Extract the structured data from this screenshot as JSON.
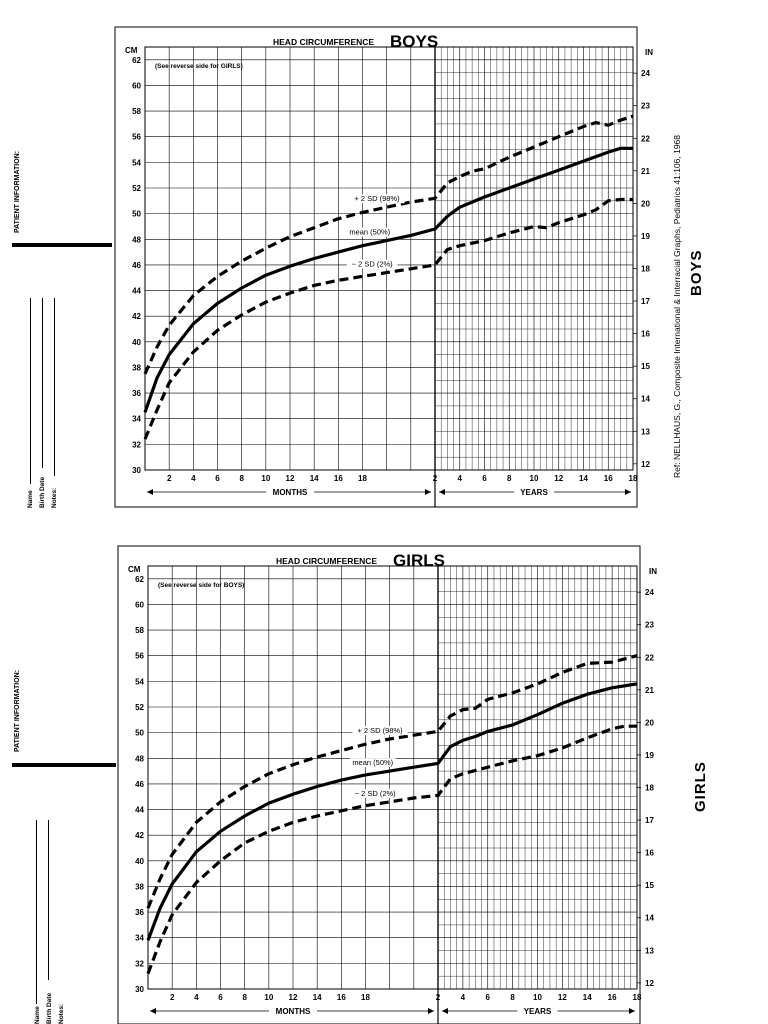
{
  "boys_panel": {
    "patient_information_label": "PATIENT INFORMATION:",
    "name_label": "Name",
    "birth_date_label": "Birth Date",
    "notes_label": "Notes:",
    "reference": "Ref: NELLHAUS, G., Composite International & Interracial Graphs, Pediatrics 41:106, 1968",
    "side_label": "BOYS"
  },
  "girls_panel": {
    "patient_information_label": "PATIENT INFORMATION:",
    "name_label": "Name",
    "birth_date_label": "Birth Date",
    "notes_label": "Notes:",
    "side_label": "GIRLS"
  },
  "chart_data": [
    {
      "type": "line",
      "title_prefix": "HEAD CIRCUMFERENCE",
      "title_main": "BOYS",
      "note": "(See reverse side for GIRLS)",
      "ylabel_left": "CM",
      "ylabel_right": "IN",
      "y_ticks_cm": [
        "30",
        "32",
        "34",
        "36",
        "38",
        "40",
        "42",
        "44",
        "46",
        "48",
        "50",
        "52",
        "54",
        "56",
        "58",
        "60",
        "62"
      ],
      "y_ticks_in": [
        "12",
        "13",
        "14",
        "15",
        "16",
        "17",
        "18",
        "19",
        "20",
        "21",
        "22",
        "23",
        "24"
      ],
      "x_ticks_months": [
        "2",
        "4",
        "6",
        "8",
        "10",
        "12",
        "14",
        "16",
        "18"
      ],
      "x_ticks_years": [
        "2",
        "4",
        "6",
        "8",
        "10",
        "12",
        "14",
        "16",
        "18"
      ],
      "xlabel_months": "MONTHS",
      "xlabel_years": "YEARS",
      "ylim_cm": [
        30,
        63
      ],
      "grid": true,
      "series": [
        {
          "name": "+ 2 SD (98%)",
          "style": "dashed",
          "months": [
            [
              0,
              37.5
            ],
            [
              1,
              39.6
            ],
            [
              2,
              41.3
            ],
            [
              4,
              43.6
            ],
            [
              6,
              45.1
            ],
            [
              8,
              46.3
            ],
            [
              10,
              47.3
            ],
            [
              12,
              48.2
            ],
            [
              14,
              48.9
            ],
            [
              16,
              49.6
            ],
            [
              18,
              50.1
            ],
            [
              20,
              50.5
            ],
            [
              22,
              50.9
            ],
            [
              24,
              51.2
            ]
          ],
          "years": [
            [
              2,
              51.2
            ],
            [
              3,
              52.4
            ],
            [
              4,
              52.9
            ],
            [
              5,
              53.3
            ],
            [
              6,
              53.5
            ],
            [
              8,
              54.4
            ],
            [
              10,
              55.2
            ],
            [
              12,
              56.0
            ],
            [
              14,
              56.8
            ],
            [
              15,
              57.1
            ],
            [
              16,
              56.9
            ],
            [
              17,
              57.3
            ],
            [
              18,
              57.6
            ]
          ]
        },
        {
          "name": "mean (50%)",
          "style": "solid",
          "months": [
            [
              0,
              34.5
            ],
            [
              1,
              37.2
            ],
            [
              2,
              39.0
            ],
            [
              4,
              41.4
            ],
            [
              6,
              43.0
            ],
            [
              8,
              44.2
            ],
            [
              10,
              45.2
            ],
            [
              12,
              45.9
            ],
            [
              14,
              46.5
            ],
            [
              16,
              47.0
            ],
            [
              18,
              47.5
            ],
            [
              20,
              47.9
            ],
            [
              22,
              48.3
            ],
            [
              24,
              48.8
            ]
          ],
          "years": [
            [
              2,
              48.8
            ],
            [
              3,
              49.8
            ],
            [
              4,
              50.5
            ],
            [
              6,
              51.3
            ],
            [
              8,
              52.0
            ],
            [
              10,
              52.7
            ],
            [
              12,
              53.4
            ],
            [
              14,
              54.1
            ],
            [
              16,
              54.8
            ],
            [
              17,
              55.1
            ],
            [
              18,
              55.1
            ]
          ]
        },
        {
          "name": "− 2 SD (2%)",
          "style": "dashed",
          "months": [
            [
              0,
              32.4
            ],
            [
              1,
              34.7
            ],
            [
              2,
              36.8
            ],
            [
              4,
              39.2
            ],
            [
              6,
              40.9
            ],
            [
              8,
              42.1
            ],
            [
              10,
              43.1
            ],
            [
              12,
              43.8
            ],
            [
              14,
              44.4
            ],
            [
              16,
              44.8
            ],
            [
              18,
              45.1
            ],
            [
              20,
              45.4
            ],
            [
              22,
              45.7
            ],
            [
              24,
              46.0
            ]
          ],
          "years": [
            [
              2,
              46.0
            ],
            [
              3,
              47.2
            ],
            [
              4,
              47.5
            ],
            [
              6,
              47.9
            ],
            [
              8,
              48.5
            ],
            [
              10,
              49.0
            ],
            [
              11,
              48.9
            ],
            [
              12,
              49.3
            ],
            [
              14,
              49.9
            ],
            [
              15,
              50.3
            ],
            [
              16,
              51.0
            ],
            [
              17,
              51.1
            ],
            [
              18,
              51.1
            ]
          ]
        }
      ],
      "line_labels": [
        "+ 2 SD (98%)",
        "mean (50%)",
        "− 2 SD (2%)"
      ]
    },
    {
      "type": "line",
      "title_prefix": "HEAD CIRCUMFERENCE",
      "title_main": "GIRLS",
      "note": "(See reverse side for BOYS)",
      "ylabel_left": "CM",
      "ylabel_right": "IN",
      "y_ticks_cm": [
        "30",
        "32",
        "34",
        "36",
        "38",
        "40",
        "42",
        "44",
        "46",
        "48",
        "50",
        "52",
        "54",
        "56",
        "58",
        "60",
        "62"
      ],
      "y_ticks_in": [
        "12",
        "13",
        "14",
        "15",
        "16",
        "17",
        "18",
        "19",
        "20",
        "21",
        "22",
        "23",
        "24"
      ],
      "x_ticks_months": [
        "2",
        "4",
        "6",
        "8",
        "10",
        "12",
        "14",
        "16",
        "18"
      ],
      "x_ticks_years": [
        "2",
        "4",
        "6",
        "8",
        "10",
        "12",
        "14",
        "16",
        "18"
      ],
      "xlabel_months": "MONTHS",
      "xlabel_years": "YEARS",
      "ylim_cm": [
        30,
        63
      ],
      "grid": true,
      "series": [
        {
          "name": "+ 2 SD (98%)",
          "style": "dashed",
          "months": [
            [
              0,
              36.3
            ],
            [
              1,
              38.6
            ],
            [
              2,
              40.5
            ],
            [
              4,
              43.0
            ],
            [
              6,
              44.6
            ],
            [
              8,
              45.8
            ],
            [
              10,
              46.8
            ],
            [
              12,
              47.5
            ],
            [
              14,
              48.1
            ],
            [
              16,
              48.6
            ],
            [
              18,
              49.1
            ],
            [
              20,
              49.5
            ],
            [
              22,
              49.8
            ],
            [
              24,
              50.1
            ]
          ],
          "years": [
            [
              2,
              50.1
            ],
            [
              3,
              51.3
            ],
            [
              4,
              51.8
            ],
            [
              5,
              51.9
            ],
            [
              6,
              52.6
            ],
            [
              8,
              53.1
            ],
            [
              10,
              53.8
            ],
            [
              12,
              54.7
            ],
            [
              14,
              55.4
            ],
            [
              16,
              55.5
            ],
            [
              18,
              56.0
            ]
          ]
        },
        {
          "name": "mean (50%)",
          "style": "solid",
          "months": [
            [
              0,
              33.8
            ],
            [
              1,
              36.3
            ],
            [
              2,
              38.2
            ],
            [
              4,
              40.7
            ],
            [
              6,
              42.3
            ],
            [
              8,
              43.5
            ],
            [
              10,
              44.5
            ],
            [
              12,
              45.2
            ],
            [
              14,
              45.8
            ],
            [
              16,
              46.3
            ],
            [
              18,
              46.7
            ],
            [
              20,
              47.0
            ],
            [
              22,
              47.3
            ],
            [
              24,
              47.6
            ]
          ],
          "years": [
            [
              2,
              47.6
            ],
            [
              3,
              48.9
            ],
            [
              4,
              49.4
            ],
            [
              5,
              49.7
            ],
            [
              6,
              50.1
            ],
            [
              8,
              50.6
            ],
            [
              10,
              51.4
            ],
            [
              12,
              52.3
            ],
            [
              14,
              53.0
            ],
            [
              16,
              53.5
            ],
            [
              18,
              53.8
            ]
          ]
        },
        {
          "name": "− 2 SD (2%)",
          "style": "dashed",
          "months": [
            [
              0,
              31.2
            ],
            [
              1,
              33.7
            ],
            [
              2,
              35.8
            ],
            [
              4,
              38.3
            ],
            [
              6,
              40.0
            ],
            [
              8,
              41.4
            ],
            [
              10,
              42.3
            ],
            [
              12,
              43.0
            ],
            [
              14,
              43.5
            ],
            [
              16,
              43.9
            ],
            [
              18,
              44.3
            ],
            [
              20,
              44.6
            ],
            [
              22,
              44.9
            ],
            [
              24,
              45.1
            ]
          ],
          "years": [
            [
              2,
              45.1
            ],
            [
              3,
              46.4
            ],
            [
              4,
              46.8
            ],
            [
              6,
              47.3
            ],
            [
              8,
              47.8
            ],
            [
              10,
              48.2
            ],
            [
              12,
              48.8
            ],
            [
              14,
              49.6
            ],
            [
              16,
              50.3
            ],
            [
              17,
              50.5
            ],
            [
              18,
              50.5
            ]
          ]
        }
      ],
      "line_labels": [
        "+ 2 SD (98%)",
        "mean (50%)",
        "− 2 SD (2%)"
      ]
    }
  ]
}
